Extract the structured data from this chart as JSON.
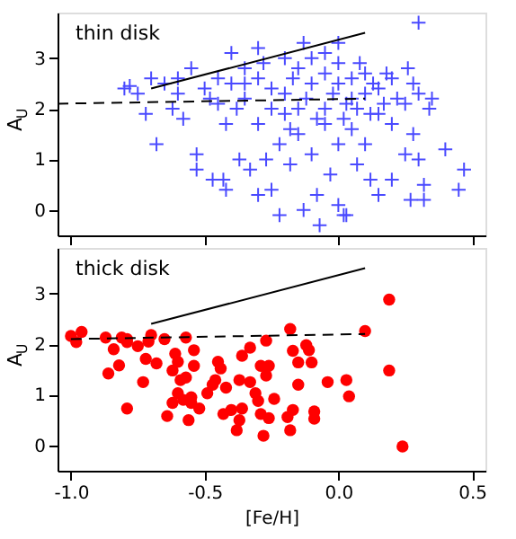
{
  "chart_data": [
    {
      "type": "scatter",
      "annotations": [
        "thin disk"
      ],
      "ylabel": "A$_{U}$",
      "xlim": [
        -1.05,
        0.55
      ],
      "ylim": [
        -0.5,
        3.9
      ],
      "xticks": [
        {
          "value": -1.0,
          "label": null
        },
        {
          "value": -0.5,
          "label": null
        },
        {
          "value": 0,
          "label": null
        },
        {
          "value": 0.5,
          "label": null
        }
      ],
      "yticks": [
        0,
        1,
        2,
        3
      ],
      "tick_labels": "y",
      "grid": false,
      "legend": false,
      "series": [
        {
          "type": "scatter",
          "marker": "cross",
          "color": "#4a4aff",
          "x": [
            -0.8,
            -0.78,
            -0.75,
            -0.72,
            -0.7,
            -0.68,
            -0.65,
            -0.62,
            -0.6,
            -0.58,
            -0.55,
            -0.53,
            -0.53,
            -0.5,
            -0.48,
            -0.47,
            -0.45,
            -0.43,
            -0.42,
            -0.42,
            -0.4,
            -0.38,
            -0.37,
            -0.35,
            -0.33,
            -0.3,
            -0.3,
            -0.28,
            -0.27,
            -0.25,
            -0.25,
            -0.22,
            -0.22,
            -0.2,
            -0.2,
            -0.18,
            -0.17,
            -0.15,
            -0.13,
            -0.13,
            -0.12,
            -0.1,
            -0.08,
            -0.07,
            -0.05,
            -0.05,
            -0.03,
            -0.02,
            0.0,
            0.0,
            0.0,
            0.02,
            0.03,
            0.03,
            0.05,
            0.05,
            0.07,
            0.08,
            0.1,
            0.1,
            0.12,
            0.13,
            0.15,
            0.15,
            0.18,
            0.2,
            0.2,
            0.22,
            0.25,
            0.26,
            0.27,
            0.28,
            0.3,
            0.3,
            0.32,
            0.3,
            0.32,
            0.34,
            0.4,
            0.45,
            0.47,
            -0.15,
            -0.1,
            -0.05,
            0.0,
            0.05,
            0.1,
            -0.3,
            -0.35,
            -0.2,
            -0.25,
            0.15,
            0.2,
            0.25,
            -0.4,
            -0.6,
            -0.45,
            -0.1,
            -0.05,
            0.0,
            -0.3,
            -0.35,
            0.07,
            0.12,
            -0.15,
            -0.08,
            0.02,
            -0.18,
            0.17,
            0.28,
            0.35
          ],
          "values": [
            2.4,
            2.45,
            2.3,
            1.9,
            2.6,
            1.3,
            2.5,
            2.0,
            2.6,
            1.8,
            2.8,
            1.1,
            0.8,
            2.4,
            2.2,
            0.6,
            2.6,
            0.6,
            1.7,
            0.4,
            3.1,
            2.0,
            1.0,
            2.5,
            0.8,
            1.7,
            0.3,
            2.9,
            1.0,
            2.4,
            0.4,
            1.3,
            -0.1,
            3.0,
            1.9,
            0.9,
            2.6,
            1.5,
            3.3,
            0.0,
            2.2,
            1.1,
            0.3,
            -0.3,
            2.7,
            1.7,
            0.7,
            2.3,
            2.9,
            1.3,
            0.1,
            -0.1,
            -0.1,
            2.1,
            2.6,
            1.6,
            0.9,
            2.9,
            2.3,
            1.3,
            0.6,
            2.5,
            1.9,
            0.3,
            2.7,
            1.7,
            0.6,
            2.2,
            1.1,
            2.8,
            0.2,
            1.5,
            2.3,
            1.0,
            0.5,
            3.7,
            0.2,
            2.0,
            1.2,
            0.4,
            0.8,
            2.8,
            2.5,
            2.0,
            2.5,
            2.2,
            2.7,
            2.6,
            2.2,
            2.3,
            2.0,
            2.4,
            2.6,
            2.1,
            2.5,
            2.3,
            2.1,
            3.0,
            3.1,
            3.3,
            3.2,
            2.8,
            2.0,
            1.9,
            2.0,
            1.8,
            1.8,
            1.6,
            2.1,
            2.5,
            2.2
          ]
        },
        {
          "type": "line",
          "line_style": "solid",
          "color": "#000000",
          "x": [
            -0.7,
            0.1
          ],
          "values": [
            2.4,
            3.5
          ]
        },
        {
          "type": "line",
          "line_style": "dashed",
          "color": "#000000",
          "x": [
            -1.05,
            0.1
          ],
          "values": [
            2.1,
            2.2
          ]
        }
      ]
    },
    {
      "type": "scatter",
      "annotations": [
        "thick disk"
      ],
      "xlabel": "[Fe/H]",
      "ylabel": "A$_{U}$",
      "xlim": [
        -1.05,
        0.55
      ],
      "ylim": [
        -0.5,
        3.9
      ],
      "xticks": [
        {
          "value": -1.0,
          "label": "-1.0"
        },
        {
          "value": -0.5,
          "label": "-0.5"
        },
        {
          "value": 0,
          "label": "0.0"
        },
        {
          "value": 0.5,
          "label": "0.5"
        }
      ],
      "yticks": [
        0,
        1,
        2,
        3
      ],
      "grid": false,
      "legend": false,
      "series": [
        {
          "type": "scatter",
          "marker": "circle",
          "color": "#ff0000",
          "x": [
            -1.0,
            -0.98,
            -0.96,
            -0.87,
            -0.86,
            -0.84,
            -0.82,
            -0.81,
            -0.79,
            -0.79,
            -0.79,
            -0.75,
            -0.73,
            -0.72,
            -0.71,
            -0.7,
            -0.68,
            -0.65,
            -0.64,
            -0.62,
            -0.62,
            -0.61,
            -0.6,
            -0.6,
            -0.59,
            -0.58,
            -0.57,
            -0.57,
            -0.56,
            -0.55,
            -0.55,
            -0.54,
            -0.54,
            -0.52,
            -0.49,
            -0.47,
            -0.46,
            -0.45,
            -0.44,
            -0.43,
            -0.42,
            -0.4,
            -0.38,
            -0.37,
            -0.37,
            -0.36,
            -0.36,
            -0.33,
            -0.33,
            -0.31,
            -0.3,
            -0.29,
            -0.29,
            -0.28,
            -0.27,
            -0.27,
            -0.26,
            -0.26,
            -0.24,
            -0.19,
            -0.18,
            -0.18,
            -0.17,
            -0.17,
            -0.15,
            -0.15,
            -0.12,
            -0.11,
            -0.1,
            -0.09,
            -0.09,
            -0.04,
            0.03,
            0.04,
            0.1,
            0.19,
            0.19,
            0.24
          ],
          "values": [
            2.16,
            2.04,
            2.24,
            2.13,
            1.42,
            1.9,
            1.58,
            2.13,
            2.1,
            2.04,
            0.73,
            1.96,
            1.25,
            1.71,
            2.05,
            2.18,
            1.62,
            2.1,
            0.58,
            1.48,
            0.84,
            1.81,
            1.65,
            1.03,
            1.29,
            0.9,
            2.13,
            1.34,
            0.5,
            0.95,
            0.84,
            1.88,
            1.57,
            0.73,
            1.03,
            1.2,
            1.29,
            1.65,
            1.52,
            0.62,
            1.14,
            0.7,
            0.3,
            0.5,
            1.29,
            1.77,
            0.73,
            1.25,
            1.93,
            1.03,
            0.88,
            1.57,
            0.62,
            0.19,
            1.38,
            2.07,
            0.54,
            1.57,
            0.92,
            0.56,
            2.3,
            0.3,
            1.87,
            0.7,
            1.64,
            1.2,
            1.98,
            1.88,
            1.64,
            0.67,
            0.53,
            1.25,
            1.29,
            0.97,
            2.26,
            2.88,
            1.48,
            -0.02
          ]
        },
        {
          "type": "line",
          "line_style": "solid",
          "color": "#000000",
          "x": [
            -0.7,
            0.1
          ],
          "values": [
            2.4,
            3.5
          ]
        },
        {
          "type": "line",
          "line_style": "dashed",
          "color": "#000000",
          "x": [
            -1.0,
            0.1
          ],
          "values": [
            2.1,
            2.2
          ]
        }
      ]
    }
  ]
}
